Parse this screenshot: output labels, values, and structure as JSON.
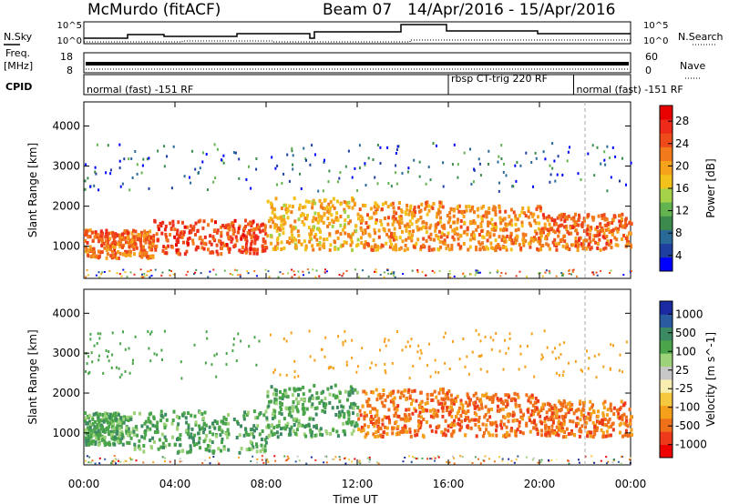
{
  "header": {
    "station": "McMurdo (fitACF)",
    "beam": "Beam 07",
    "dates": "14/Apr/2016 - 15/Apr/2016"
  },
  "summary_panel": {
    "nsky_label": "N.Sky",
    "nsearch_label": "N.Search",
    "count_ticks": [
      "10^5",
      "10^0"
    ],
    "freq_label_1": "Freq.",
    "freq_label_2": "[MHz]",
    "freq_ticks": [
      "18",
      "8"
    ],
    "nave_label": "Nave",
    "nave_ticks": [
      "60",
      "0"
    ],
    "cpid_label": "CPID",
    "cpid_entries": [
      {
        "text": "normal (fast) -151 RF",
        "start_hour": 0
      },
      {
        "text": "rbsp CT-trig 220 RF",
        "start_hour": 16
      },
      {
        "text": "normal (fast) -151 RF",
        "start_hour": 21.5
      }
    ]
  },
  "chart_data": [
    {
      "type": "heatmap",
      "title": "",
      "xlabel": "Time UT",
      "ylabel": "Slant Range [km]",
      "xlim_hours": [
        0,
        24
      ],
      "ylim": [
        200,
        4600
      ],
      "x_ticks": [
        "00:00",
        "04:00",
        "08:00",
        "12:00",
        "16:00",
        "20:00",
        "00:00"
      ],
      "y_ticks": [
        1000,
        2000,
        3000,
        4000
      ],
      "colorbar": {
        "label": "Power [dB]",
        "ticks": [
          "28",
          "24",
          "20",
          "16",
          "12",
          "8",
          "4"
        ],
        "colors": [
          "#0000ff",
          "#1f3fa0",
          "#2a6a98",
          "#3c8a4c",
          "#63b350",
          "#a6d24a",
          "#f2c21a",
          "#f6a21a",
          "#f27a1a",
          "#ee4a1a",
          "#ee2a1a",
          "#e80000"
        ]
      },
      "bands": [
        {
          "t_start": 0.0,
          "t_end": 3.0,
          "r_low": 700,
          "r_high": 1400,
          "value": 24
        },
        {
          "t_start": 3.0,
          "t_end": 8.0,
          "r_low": 800,
          "r_high": 1650,
          "value": 26
        },
        {
          "t_start": 8.0,
          "t_end": 12.0,
          "r_low": 900,
          "r_high": 2200,
          "value": 20
        },
        {
          "t_start": 12.0,
          "t_end": 16.0,
          "r_low": 900,
          "r_high": 2100,
          "value": 22
        },
        {
          "t_start": 16.0,
          "t_end": 20.0,
          "r_low": 900,
          "r_high": 2000,
          "value": 22
        },
        {
          "t_start": 20.0,
          "t_end": 24.0,
          "r_low": 900,
          "r_high": 1800,
          "value": 24
        }
      ]
    },
    {
      "type": "heatmap",
      "title": "",
      "xlabel": "Time UT",
      "ylabel": "Slant Range [km]",
      "xlim_hours": [
        0,
        24
      ],
      "ylim": [
        200,
        4600
      ],
      "x_ticks": [
        "00:00",
        "04:00",
        "08:00",
        "12:00",
        "16:00",
        "20:00",
        "00:00"
      ],
      "y_ticks": [
        1000,
        2000,
        3000,
        4000
      ],
      "colorbar": {
        "label": "Velocity [m s^-1]",
        "ticks": [
          "1000",
          "500",
          "100",
          "25",
          "-25",
          "-100",
          "-500",
          "-1000"
        ],
        "colors": [
          "#ee0000",
          "#ee3a1a",
          "#f0701a",
          "#f4a01a",
          "#f6c840",
          "#f8eeb0",
          "#c8c8c8",
          "#9ed27a",
          "#4aa54a",
          "#3c8a62",
          "#2a5aa0",
          "#1a2aa0"
        ]
      },
      "bands": [
        {
          "t_start": 0.0,
          "t_end": 2.0,
          "r_low": 700,
          "r_high": 1500,
          "value": 100
        },
        {
          "t_start": 2.0,
          "t_end": 8.0,
          "r_low": 500,
          "r_high": 1550,
          "value": 200
        },
        {
          "t_start": 8.0,
          "t_end": 12.0,
          "r_low": 900,
          "r_high": 2200,
          "value": 150
        },
        {
          "t_start": 12.0,
          "t_end": 16.0,
          "r_low": 900,
          "r_high": 2100,
          "value": -200
        },
        {
          "t_start": 16.0,
          "t_end": 20.0,
          "r_low": 900,
          "r_high": 2000,
          "value": -200
        },
        {
          "t_start": 20.0,
          "t_end": 24.0,
          "r_low": 900,
          "r_high": 1800,
          "value": -200
        }
      ]
    }
  ]
}
